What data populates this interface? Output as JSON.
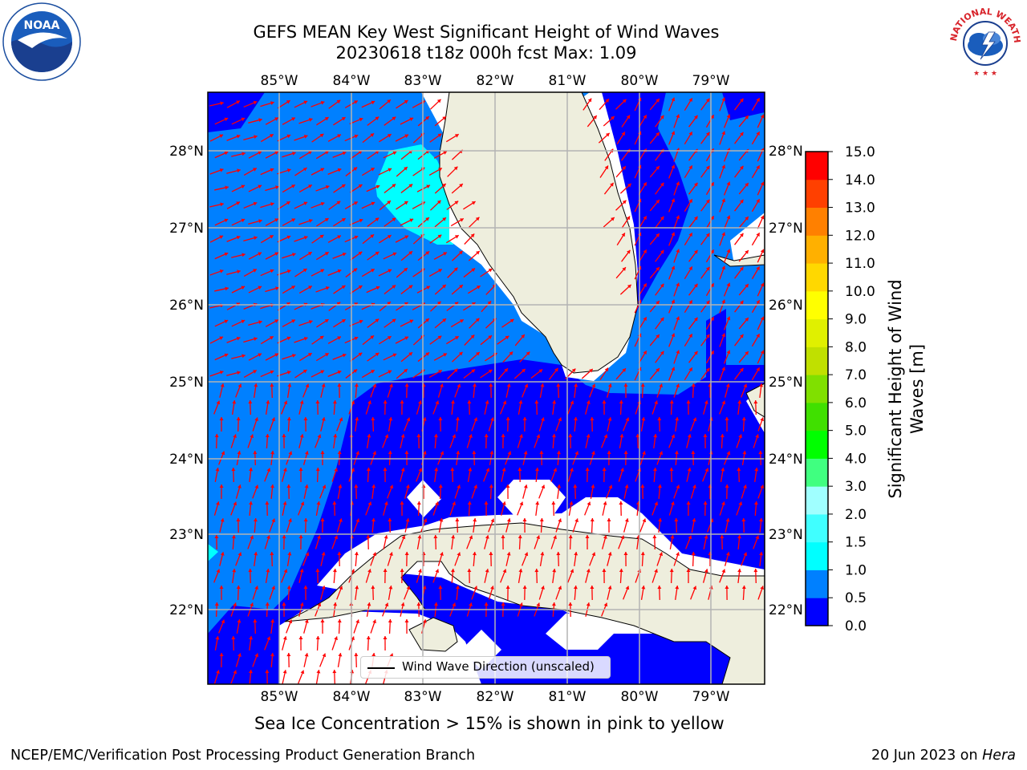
{
  "title": {
    "line1": "GEFS MEAN Key West Significant Height of Wind Waves",
    "line2": "20230618 t18z 000h fcst   Max: 1.09"
  },
  "map": {
    "lon_ticks": [
      "85°W",
      "84°W",
      "83°W",
      "82°W",
      "81°W",
      "80°W",
      "79°W"
    ],
    "lat_ticks": [
      "28°N",
      "27°N",
      "26°N",
      "25°N",
      "24°N",
      "23°N",
      "22°N"
    ],
    "legend_label": "Wind Wave Direction (unscaled)",
    "arrow_color": "#ff0000",
    "land_color": "#eeeedd",
    "grid_color": "#b3b3b3"
  },
  "colorbar": {
    "label": "Significant Height of Wind Waves [m]",
    "label_line1": "Significant Height of Wind",
    "label_line2": "Waves [m]",
    "ticks": [
      "0.0",
      "0.5",
      "1.0",
      "1.5",
      "2.0",
      "3.0",
      "4.0",
      "5.0",
      "6.0",
      "7.0",
      "8.0",
      "9.0",
      "10.0",
      "11.0",
      "12.0",
      "13.0",
      "14.0",
      "15.0"
    ],
    "colors": [
      "#0000ff",
      "#0080ff",
      "#00ffff",
      "#40ffff",
      "#a0ffff",
      "#40ff80",
      "#00ff00",
      "#40e000",
      "#80e000",
      "#c0e000",
      "#e0f000",
      "#ffff00",
      "#ffd800",
      "#ffb000",
      "#ff8000",
      "#ff4000",
      "#ff0000"
    ]
  },
  "note": "Sea Ice Concentration > 15% is shown in pink to yellow",
  "footer": {
    "left": "NCEP/EMC/Verification Post Processing Product Generation Branch",
    "right_prefix": "20 Jun 2023 on ",
    "right_italic": "Hera"
  },
  "logos": {
    "noaa": "NOAA",
    "nws_text": "NATIONAL WEATHER SERVICE"
  }
}
